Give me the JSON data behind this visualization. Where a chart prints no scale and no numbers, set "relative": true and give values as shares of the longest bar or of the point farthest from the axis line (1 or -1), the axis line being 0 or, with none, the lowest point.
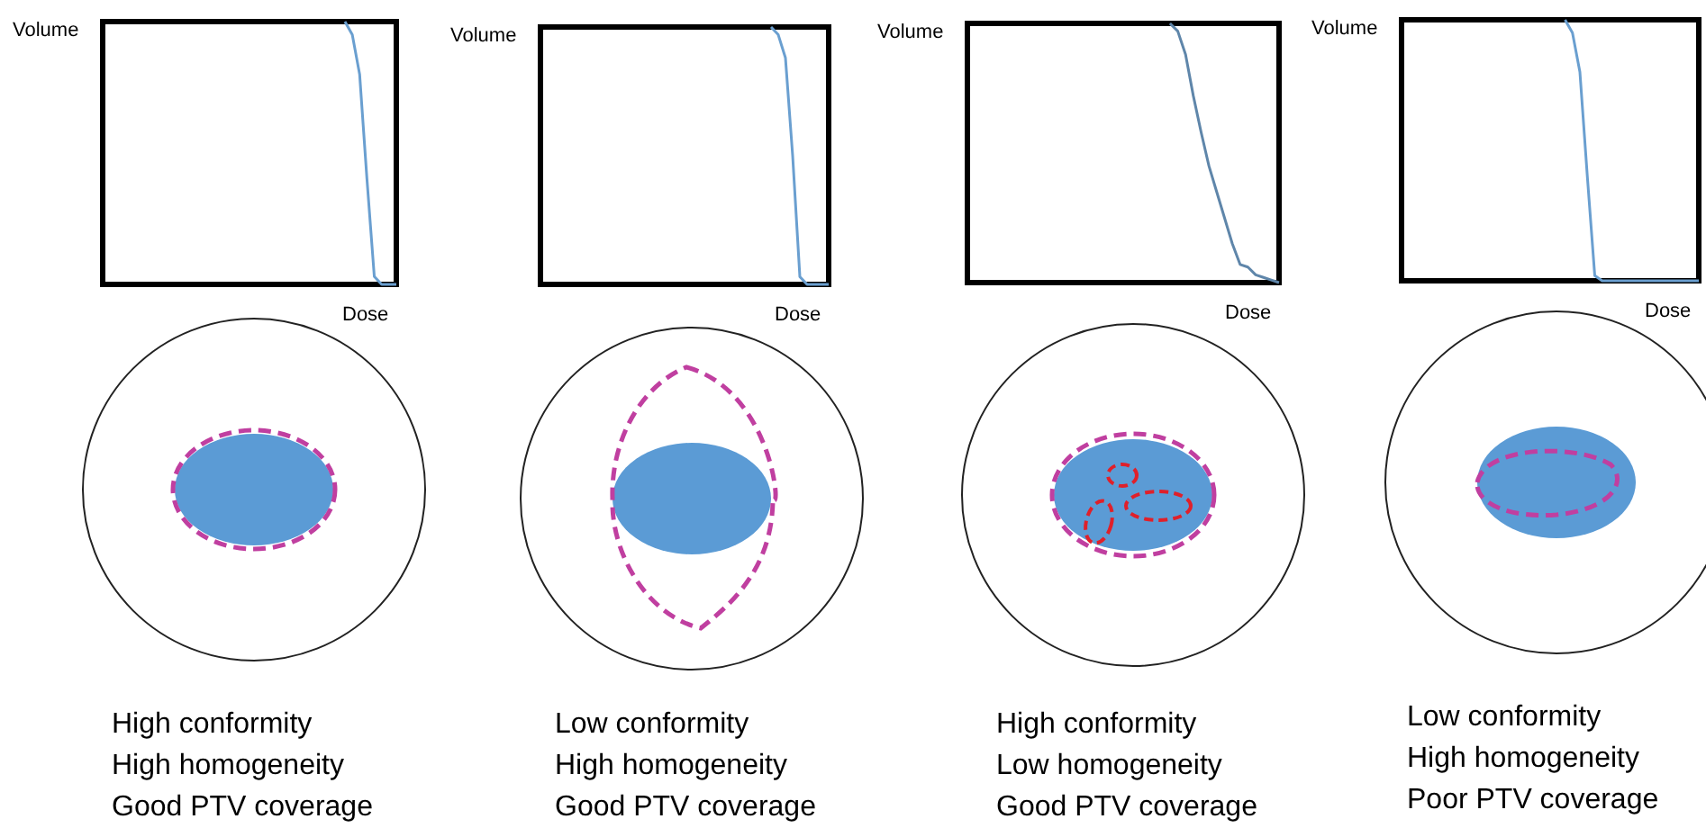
{
  "chart_data": [
    {
      "type": "line",
      "xlabel": "Dose",
      "ylabel": "Volume",
      "relative": true,
      "categories": [
        null,
        null,
        null,
        null,
        null,
        null,
        null,
        null,
        null,
        null,
        null,
        null,
        null,
        null,
        null,
        null,
        null,
        null,
        null,
        null,
        null,
        null,
        null,
        null,
        null,
        null,
        null,
        null,
        null,
        null,
        null,
        null,
        null,
        null,
        null,
        null,
        null,
        null,
        null,
        null,
        null
      ],
      "series": [
        {
          "color": "#6a9fd0",
          "values": [
            null,
            null,
            null,
            null,
            null,
            null,
            null,
            null,
            null,
            null,
            null,
            null,
            null,
            null,
            null,
            null,
            null,
            null,
            null,
            null,
            null,
            null,
            null,
            null,
            null,
            null,
            null,
            null,
            null,
            null,
            null,
            null,
            null,
            1,
            0.95,
            0.8,
            0.4,
            0.03,
            0,
            0,
            0
          ]
        }
      ],
      "annotations": [
        "High conformity",
        "High homogeneity",
        "Good PTV coverage"
      ]
    },
    {
      "type": "line",
      "xlabel": "Dose",
      "ylabel": "Volume",
      "relative": true,
      "categories": [
        null,
        null,
        null,
        null,
        null,
        null,
        null,
        null,
        null,
        null,
        null,
        null,
        null,
        null,
        null,
        null,
        null,
        null,
        null,
        null,
        null,
        null,
        null,
        null,
        null,
        null,
        null,
        null,
        null,
        null,
        null,
        null,
        null,
        null,
        null,
        null,
        null,
        null,
        null,
        null,
        null
      ],
      "series": [
        {
          "color": "#6a9fd0",
          "values": [
            null,
            null,
            null,
            null,
            null,
            null,
            null,
            null,
            null,
            null,
            null,
            null,
            null,
            null,
            null,
            null,
            null,
            null,
            null,
            null,
            null,
            null,
            null,
            null,
            null,
            null,
            null,
            null,
            null,
            null,
            null,
            null,
            1,
            0.97,
            0.88,
            0.5,
            0.03,
            0,
            0,
            0,
            0
          ]
        }
      ],
      "annotations": [
        "Low conformity",
        "High homogeneity",
        "Good PTV coverage"
      ]
    },
    {
      "type": "line",
      "xlabel": "Dose",
      "ylabel": "Volume",
      "relative": true,
      "categories": [
        null,
        null,
        null,
        null,
        null,
        null,
        null,
        null,
        null,
        null,
        null,
        null,
        null,
        null,
        null,
        null,
        null,
        null,
        null,
        null,
        null,
        null,
        null,
        null,
        null,
        null,
        null,
        null,
        null,
        null,
        null,
        null,
        null,
        null,
        null,
        null,
        null,
        null,
        null,
        null,
        null
      ],
      "series": [
        {
          "color": "#5f86aa",
          "values": [
            null,
            null,
            null,
            null,
            null,
            null,
            null,
            null,
            null,
            null,
            null,
            null,
            null,
            null,
            null,
            null,
            null,
            null,
            null,
            null,
            null,
            null,
            null,
            null,
            null,
            null,
            1,
            0.97,
            0.88,
            0.72,
            0.58,
            0.45,
            0.35,
            0.25,
            0.15,
            0.07,
            0.06,
            0.03,
            0.02,
            0.01,
            0
          ]
        }
      ],
      "annotations": [
        "High conformity",
        "Low homogeneity",
        "Good PTV coverage"
      ]
    },
    {
      "type": "line",
      "xlabel": "Dose",
      "ylabel": "Volume",
      "relative": true,
      "categories": [
        null,
        null,
        null,
        null,
        null,
        null,
        null,
        null,
        null,
        null,
        null,
        null,
        null,
        null,
        null,
        null,
        null,
        null,
        null,
        null,
        null,
        null,
        null,
        null,
        null,
        null,
        null,
        null,
        null,
        null,
        null,
        null,
        null,
        null,
        null,
        null,
        null,
        null,
        null,
        null,
        null
      ],
      "series": [
        {
          "color": "#6a9fd0",
          "values": [
            null,
            null,
            null,
            null,
            null,
            null,
            null,
            null,
            null,
            null,
            null,
            null,
            null,
            null,
            null,
            null,
            null,
            null,
            null,
            null,
            null,
            null,
            1,
            0.95,
            0.8,
            0.4,
            0.02,
            0,
            0,
            0,
            0,
            0,
            0,
            0,
            0,
            0,
            0,
            0,
            0,
            0,
            0
          ]
        }
      ],
      "annotations": [
        "Low conformity",
        "High homogeneity",
        "Poor PTV coverage"
      ]
    }
  ]
}
